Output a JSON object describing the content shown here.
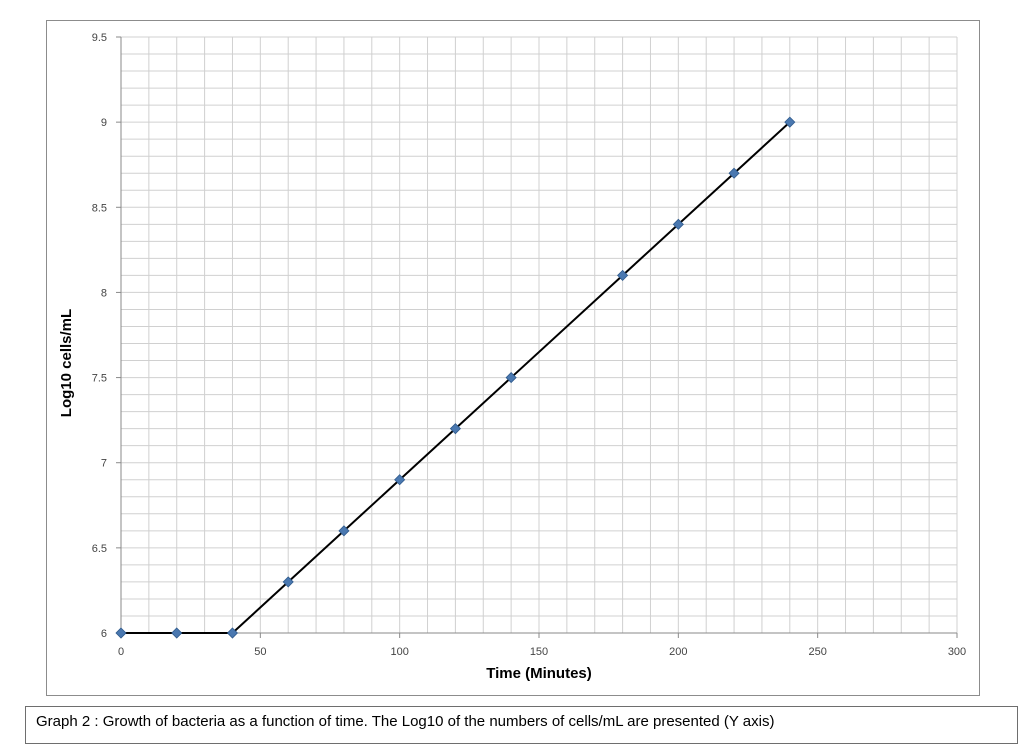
{
  "chart_data": {
    "type": "scatter",
    "title": "",
    "xlabel": "Time (Minutes)",
    "ylabel": "Log10 cells/mL",
    "xlim": [
      0,
      300
    ],
    "ylim": [
      6,
      9.5
    ],
    "x_ticks": [
      0,
      50,
      100,
      150,
      200,
      250,
      300
    ],
    "y_ticks": [
      6,
      6.5,
      7,
      7.5,
      8,
      8.5,
      9,
      9.5
    ],
    "grid": true,
    "marker": "diamond",
    "marker_color": "#4a78b0",
    "line_color": "#000000",
    "series": [
      {
        "x": [
          0,
          20,
          40,
          60,
          80,
          100,
          120,
          140,
          180,
          200,
          220,
          240
        ],
        "y": [
          6,
          6,
          6,
          6.3,
          6.6,
          6.9,
          7.2,
          7.5,
          8.1,
          8.4,
          8.7,
          9.0
        ]
      }
    ],
    "fit_line": {
      "x": [
        0,
        40,
        240
      ],
      "y": [
        6,
        6,
        9.0
      ]
    }
  },
  "caption": "Graph 2 : Growth of bacteria as a function of time. The Log10 of the numbers of cells/mL are presented (Y axis)"
}
